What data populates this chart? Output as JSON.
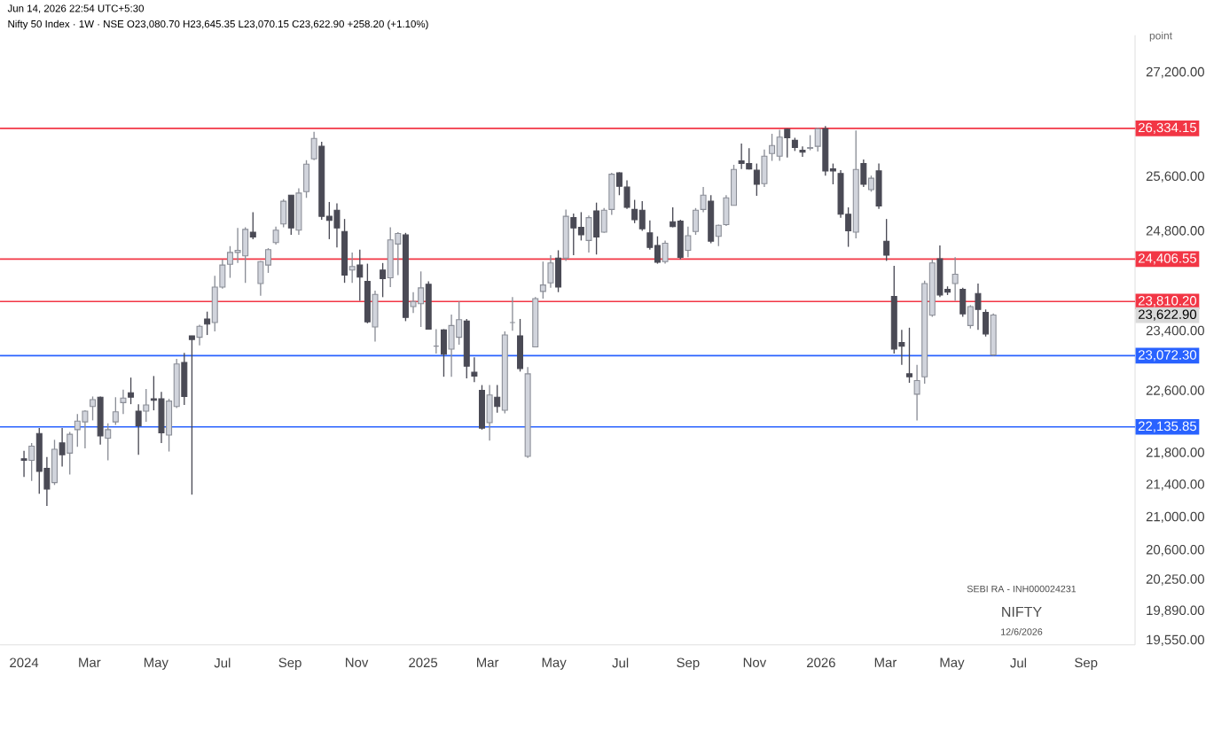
{
  "chart_data": {
    "type": "candlestick",
    "title": "Nifty 50 Index · 1W · NSE  O23,080.70 H23,645.35 L23,070.15 C23,622.90 +258.20 (+1.10%)",
    "subtitle": "Jun 14, 2026 22:54 UTC+5:30",
    "ylabel": "point",
    "log": "y",
    "x": [
      "2024-01-01",
      "2024-01-08",
      "2024-01-15",
      "2024-01-22",
      "2024-01-29",
      "2024-02-05",
      "2024-02-12",
      "2024-02-19",
      "2024-02-26",
      "2024-03-04",
      "2024-03-11",
      "2024-03-18",
      "2024-03-25",
      "2024-04-01",
      "2024-04-08",
      "2024-04-15",
      "2024-04-22",
      "2024-04-29",
      "2024-05-06",
      "2024-05-13",
      "2024-05-20",
      "2024-05-27",
      "2024-06-03",
      "2024-06-10",
      "2024-06-17",
      "2024-06-24",
      "2024-07-01",
      "2024-07-08",
      "2024-07-15",
      "2024-07-22",
      "2024-07-29",
      "2024-08-05",
      "2024-08-12",
      "2024-08-19",
      "2024-08-26",
      "2024-09-02",
      "2024-09-09",
      "2024-09-16",
      "2024-09-23",
      "2024-09-30",
      "2024-10-07",
      "2024-10-14",
      "2024-10-21",
      "2024-10-28",
      "2024-11-04",
      "2024-11-11",
      "2024-11-18",
      "2024-11-25",
      "2024-12-02",
      "2024-12-09",
      "2024-12-16",
      "2024-12-23",
      "2024-12-30",
      "2025-01-06",
      "2025-01-13",
      "2025-01-20",
      "2025-01-27",
      "2025-02-03",
      "2025-02-10",
      "2025-02-17",
      "2025-02-24",
      "2025-03-03",
      "2025-03-10",
      "2025-03-17",
      "2025-03-24",
      "2025-03-31",
      "2025-04-07",
      "2025-04-14",
      "2025-04-21",
      "2025-04-28",
      "2025-05-05",
      "2025-05-12",
      "2025-05-19",
      "2025-05-26",
      "2025-06-02",
      "2025-06-09",
      "2025-06-16",
      "2025-06-23",
      "2025-06-30",
      "2025-07-07",
      "2025-07-14",
      "2025-07-21",
      "2025-07-28",
      "2025-08-04",
      "2025-08-11",
      "2025-08-18",
      "2025-08-25",
      "2025-09-01",
      "2025-09-08",
      "2025-09-15",
      "2025-09-22",
      "2025-09-29",
      "2025-10-06",
      "2025-10-13",
      "2025-10-20",
      "2025-10-27",
      "2025-11-03",
      "2025-11-10",
      "2025-11-17",
      "2025-11-24",
      "2025-12-01",
      "2025-12-08",
      "2025-12-15",
      "2025-12-22",
      "2025-12-29",
      "2026-01-05",
      "2026-01-12",
      "2026-01-19",
      "2026-01-26",
      "2026-02-02",
      "2026-02-09",
      "2026-02-16",
      "2026-02-23",
      "2026-03-02",
      "2026-03-09",
      "2026-03-16",
      "2026-03-23",
      "2026-03-30",
      "2026-04-06",
      "2026-04-13",
      "2026-04-20",
      "2026-04-27",
      "2026-05-04",
      "2026-05-11",
      "2026-05-18",
      "2026-05-25",
      "2026-06-01",
      "2026-06-08"
    ],
    "ohlc": [
      [
        21730,
        21830,
        21500,
        21710
      ],
      [
        21710,
        21930,
        21450,
        21890
      ],
      [
        22050,
        22120,
        21290,
        21570
      ],
      [
        21610,
        21750,
        21140,
        21350
      ],
      [
        21430,
        21970,
        21400,
        21850
      ],
      [
        21930,
        22120,
        21630,
        21780
      ],
      [
        21800,
        22070,
        21530,
        22040
      ],
      [
        22100,
        22300,
        21880,
        22210
      ],
      [
        22200,
        22350,
        21860,
        22340
      ],
      [
        22400,
        22530,
        22220,
        22490
      ],
      [
        22520,
        22530,
        21910,
        22020
      ],
      [
        21990,
        22180,
        21710,
        22100
      ],
      [
        22200,
        22520,
        22160,
        22330
      ],
      [
        22450,
        22620,
        22300,
        22510
      ],
      [
        22580,
        22780,
        22430,
        22520
      ],
      [
        22340,
        22430,
        21780,
        22150
      ],
      [
        22340,
        22630,
        22200,
        22420
      ],
      [
        22500,
        22800,
        22350,
        22480
      ],
      [
        22500,
        22590,
        21930,
        22060
      ],
      [
        22030,
        22500,
        21820,
        22470
      ],
      [
        22400,
        23030,
        22380,
        22960
      ],
      [
        22980,
        23110,
        22420,
        22530
      ],
      [
        23340,
        23340,
        21280,
        23290
      ],
      [
        23320,
        23490,
        23210,
        23470
      ],
      [
        23570,
        23670,
        23350,
        23500
      ],
      [
        23520,
        24170,
        23400,
        24010
      ],
      [
        24010,
        24400,
        23990,
        24320
      ],
      [
        24330,
        24590,
        24140,
        24500
      ],
      [
        24500,
        24850,
        24350,
        24530
      ],
      [
        24450,
        24860,
        24070,
        24830
      ],
      [
        24790,
        25080,
        24690,
        24720
      ],
      [
        24060,
        24380,
        23890,
        24370
      ],
      [
        24320,
        24560,
        24210,
        24540
      ],
      [
        24640,
        24870,
        24610,
        24820
      ],
      [
        24910,
        25270,
        24860,
        25240
      ],
      [
        25330,
        25330,
        24750,
        24850
      ],
      [
        24820,
        25430,
        24750,
        25360
      ],
      [
        25380,
        25850,
        25290,
        25790
      ],
      [
        25870,
        26280,
        25850,
        26180
      ],
      [
        26060,
        26130,
        24970,
        25020
      ],
      [
        25020,
        25230,
        24690,
        24960
      ],
      [
        25110,
        25210,
        24570,
        24850
      ],
      [
        24800,
        24980,
        24070,
        24180
      ],
      [
        24250,
        24500,
        24070,
        24300
      ],
      [
        24320,
        24540,
        23820,
        24150
      ],
      [
        24090,
        24340,
        23510,
        23530
      ],
      [
        23460,
        23960,
        23260,
        23910
      ],
      [
        24250,
        24350,
        23870,
        24130
      ],
      [
        24140,
        24860,
        24010,
        24680
      ],
      [
        24620,
        24790,
        24180,
        24770
      ],
      [
        24750,
        24780,
        23540,
        23590
      ],
      [
        23740,
        23940,
        23650,
        23810
      ],
      [
        23780,
        24230,
        23460,
        24000
      ],
      [
        24050,
        24090,
        23430,
        23430
      ],
      [
        23200,
        23430,
        23100,
        23200
      ],
      [
        23420,
        23430,
        22790,
        23090
      ],
      [
        23160,
        23630,
        22790,
        23480
      ],
      [
        23320,
        23810,
        23220,
        23560
      ],
      [
        23540,
        23570,
        22770,
        22930
      ],
      [
        22850,
        23050,
        22720,
        22800
      ],
      [
        22610,
        22680,
        22100,
        22120
      ],
      [
        22190,
        22680,
        21960,
        22550
      ],
      [
        22520,
        22680,
        22320,
        22400
      ],
      [
        22350,
        23400,
        22310,
        23350
      ],
      [
        23520,
        23870,
        23410,
        23520
      ],
      [
        23340,
        23570,
        22860,
        22900
      ],
      [
        21760,
        22920,
        21740,
        22830
      ],
      [
        23190,
        23870,
        23190,
        23850
      ],
      [
        23950,
        24370,
        23850,
        24040
      ],
      [
        24070,
        24460,
        24000,
        24350
      ],
      [
        24420,
        24530,
        23940,
        24010
      ],
      [
        24420,
        25120,
        24380,
        25020
      ],
      [
        25000,
        25060,
        24460,
        24850
      ],
      [
        24860,
        25080,
        24670,
        24750
      ],
      [
        24670,
        25030,
        24500,
        25000
      ],
      [
        25100,
        25220,
        24470,
        24720
      ],
      [
        24790,
        25140,
        24780,
        25110
      ],
      [
        25120,
        25660,
        25040,
        25640
      ],
      [
        25660,
        25670,
        25330,
        25460
      ],
      [
        25450,
        25550,
        25130,
        25150
      ],
      [
        25120,
        25260,
        24920,
        24970
      ],
      [
        25110,
        25240,
        24810,
        24840
      ],
      [
        24780,
        24960,
        24540,
        24570
      ],
      [
        24600,
        24730,
        24340,
        24360
      ],
      [
        24370,
        24670,
        24340,
        24630
      ],
      [
        24940,
        25150,
        24860,
        24870
      ],
      [
        24950,
        24970,
        24400,
        24430
      ],
      [
        24530,
        24870,
        24430,
        24740
      ],
      [
        24800,
        25140,
        24750,
        25110
      ],
      [
        25120,
        25450,
        25080,
        25330
      ],
      [
        25240,
        25330,
        24630,
        24660
      ],
      [
        24730,
        24900,
        24590,
        24890
      ],
      [
        24900,
        25330,
        24880,
        25290
      ],
      [
        25180,
        25780,
        25180,
        25710
      ],
      [
        25840,
        26100,
        25720,
        25800
      ],
      [
        25800,
        26030,
        25710,
        25720
      ],
      [
        25700,
        25800,
        25320,
        25490
      ],
      [
        25500,
        26010,
        25450,
        25910
      ],
      [
        25950,
        26250,
        25840,
        26070
      ],
      [
        25910,
        26310,
        25840,
        26200
      ],
      [
        26320,
        26330,
        25890,
        26190
      ],
      [
        26150,
        26190,
        25990,
        26040
      ],
      [
        26000,
        26060,
        25900,
        25970
      ],
      [
        26030,
        26230,
        26000,
        26040
      ],
      [
        26060,
        26340,
        25980,
        26330
      ],
      [
        26330,
        26370,
        25620,
        25690
      ],
      [
        25720,
        25800,
        25490,
        25690
      ],
      [
        25650,
        25700,
        25000,
        25050
      ],
      [
        25050,
        25150,
        24580,
        24810
      ],
      [
        24790,
        26300,
        24700,
        25710
      ],
      [
        25800,
        25860,
        25450,
        25490
      ],
      [
        25410,
        25620,
        25380,
        25580
      ],
      [
        25690,
        25800,
        25130,
        25170
      ],
      [
        24660,
        24980,
        24380,
        24460
      ],
      [
        23880,
        24310,
        23100,
        23160
      ],
      [
        23250,
        23420,
        22950,
        23200
      ],
      [
        22830,
        23450,
        22710,
        22790
      ],
      [
        22560,
        22950,
        22220,
        22740
      ],
      [
        22790,
        24100,
        22700,
        24060
      ],
      [
        23620,
        24400,
        23600,
        24350
      ],
      [
        24410,
        24600,
        23870,
        23900
      ],
      [
        23980,
        24020,
        23900,
        23940
      ],
      [
        24060,
        24430,
        23820,
        24190
      ],
      [
        23980,
        24000,
        23600,
        23640
      ],
      [
        23480,
        23760,
        23440,
        23740
      ],
      [
        23920,
        24060,
        23420,
        23700
      ],
      [
        23660,
        23700,
        23330,
        23364.7
      ],
      [
        23080.7,
        23645.35,
        23070.15,
        23622.9
      ]
    ],
    "xlim": [
      "2023-12-10",
      "2026-10-16"
    ],
    "xticks": [
      {
        "value": "2024-01-01",
        "label": "2024"
      },
      {
        "value": "2024-03-01",
        "label": "Mar"
      },
      {
        "value": "2024-05-01",
        "label": "May"
      },
      {
        "value": "2024-07-01",
        "label": "Jul"
      },
      {
        "value": "2024-09-01",
        "label": "Sep"
      },
      {
        "value": "2024-11-01",
        "label": "Nov"
      },
      {
        "value": "2025-01-01",
        "label": "2025"
      },
      {
        "value": "2025-03-01",
        "label": "Mar"
      },
      {
        "value": "2025-05-01",
        "label": "May"
      },
      {
        "value": "2025-07-01",
        "label": "Jul"
      },
      {
        "value": "2025-09-01",
        "label": "Sep"
      },
      {
        "value": "2025-11-01",
        "label": "Nov"
      },
      {
        "value": "2026-01-01",
        "label": "2026"
      },
      {
        "value": "2026-03-01",
        "label": "Mar"
      },
      {
        "value": "2026-05-01",
        "label": "May"
      },
      {
        "value": "2026-07-01",
        "label": "Jul"
      },
      {
        "value": "2026-09-01",
        "label": "Sep"
      }
    ],
    "ylim": [
      19500,
      27800
    ],
    "yticks": [
      {
        "value": 19550,
        "label": "19,550.00"
      },
      {
        "value": 19890,
        "label": "19,890.00"
      },
      {
        "value": 20250,
        "label": "20,250.00"
      },
      {
        "value": 20600,
        "label": "20,600.00"
      },
      {
        "value": 21000,
        "label": "21,000.00"
      },
      {
        "value": 21400,
        "label": "21,400.00"
      },
      {
        "value": 21800,
        "label": "21,800.00"
      },
      {
        "value": 22600,
        "label": "22,600.00"
      },
      {
        "value": 23400,
        "label": "23,400.00"
      },
      {
        "value": 24800,
        "label": "24,800.00"
      },
      {
        "value": 25600,
        "label": "25,600.00"
      },
      {
        "value": 27200,
        "label": "27,200.00"
      }
    ],
    "ref_lines": [
      {
        "axis": "y",
        "value": 26334.15,
        "label": "26,334.15",
        "color": "#f23645"
      },
      {
        "axis": "y",
        "value": 24406.55,
        "label": "24,406.55",
        "color": "#f23645"
      },
      {
        "axis": "y",
        "value": 23810.2,
        "label": "23,810.20",
        "color": "#f23645"
      },
      {
        "axis": "y",
        "value": 23072.3,
        "label": "23,072.30",
        "color": "#2962ff"
      },
      {
        "axis": "y",
        "value": 22135.85,
        "label": "22,135.85",
        "color": "#2962ff"
      }
    ],
    "annotations": [
      "23,622.90",
      "SEBI RA - INH000024231",
      "NIFTY",
      "12/6/2026"
    ]
  }
}
